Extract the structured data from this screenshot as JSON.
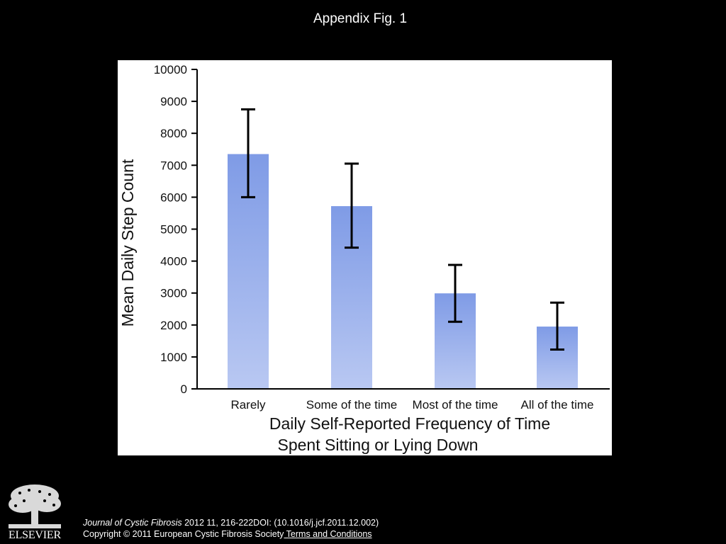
{
  "slide": {
    "title": "Appendix Fig. 1"
  },
  "chart_data": {
    "type": "bar",
    "title": "",
    "categories": [
      "Rarely",
      "Some of the time",
      "Most of the time",
      "All of the time"
    ],
    "values": [
      7350,
      5720,
      2990,
      1950
    ],
    "error_bars": {
      "upper": [
        8750,
        7050,
        3880,
        2700
      ],
      "lower": [
        6000,
        4420,
        2100,
        1230
      ]
    },
    "ylabel": "Mean Daily Step Count",
    "xlabel_lines": [
      "Daily Self-Reported Frequency of Time",
      "Spent Sitting or Lying Down"
    ],
    "ylim": [
      0,
      10000
    ],
    "yticks": [
      0,
      1000,
      2000,
      3000,
      4000,
      5000,
      6000,
      7000,
      8000,
      9000,
      10000
    ],
    "grid": false,
    "legend": "none",
    "bar_color": "#7f9be6"
  },
  "footer": {
    "publisher": "ELSEVIER",
    "journal": "Journal of Cystic Fibrosis",
    "reference": " 2012 11, 216-222DOI: (10.1016/j.jcf.2011.12.002)",
    "copyright": "Copyright © 2011 European Cystic Fibrosis Society",
    "terms_link": " Terms and Conditions"
  }
}
